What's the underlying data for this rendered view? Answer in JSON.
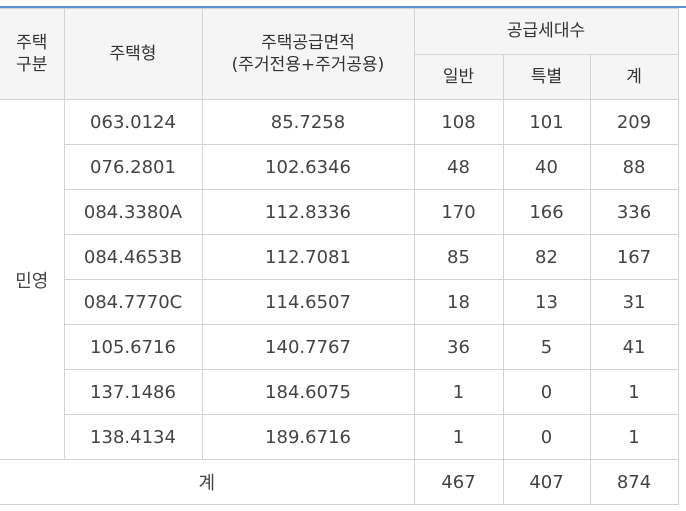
{
  "colors": {
    "header_bg": "#f5f5f5",
    "border": "#d3d3d3",
    "top_rule": "#5b8fd1"
  },
  "header": {
    "housing_category": [
      "주택",
      "구분"
    ],
    "housing_type": "주택형",
    "supply_area": [
      "주택공급면적",
      "(주거전용+주거공용)"
    ],
    "supply_units": "공급세대수",
    "general": "일반",
    "special": "특별",
    "total": "계"
  },
  "group_label": "민영",
  "rows": [
    {
      "type": "063.0124",
      "area": "85.7258",
      "general": "108",
      "special": "101",
      "total": "209"
    },
    {
      "type": "076.2801",
      "area": "102.6346",
      "general": "48",
      "special": "40",
      "total": "88"
    },
    {
      "type": "084.3380A",
      "area": "112.8336",
      "general": "170",
      "special": "166",
      "total": "336"
    },
    {
      "type": "084.4653B",
      "area": "112.7081",
      "general": "85",
      "special": "82",
      "total": "167"
    },
    {
      "type": "084.7770C",
      "area": "114.6507",
      "general": "18",
      "special": "13",
      "total": "31"
    },
    {
      "type": "105.6716",
      "area": "140.7767",
      "general": "36",
      "special": "5",
      "total": "41"
    },
    {
      "type": "137.1486",
      "area": "184.6075",
      "general": "1",
      "special": "0",
      "total": "1"
    },
    {
      "type": "138.4134",
      "area": "189.6716",
      "general": "1",
      "special": "0",
      "total": "1"
    }
  ],
  "footer": {
    "label": "계",
    "general": "467",
    "special": "407",
    "total": "874"
  }
}
